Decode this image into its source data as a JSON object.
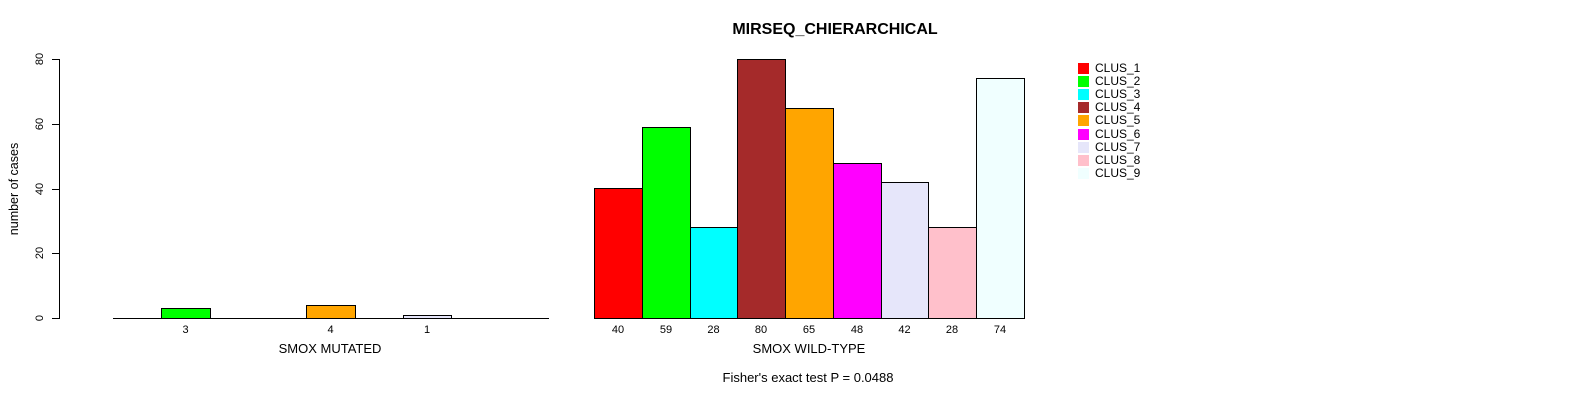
{
  "figure": {
    "title": "MIRSEQ_CHIERARCHICAL",
    "annotation": "Fisher's exact test P = 0.0488"
  },
  "chart_data": {
    "type": "bar",
    "title": "MIRSEQ_CHIERARCHICAL",
    "ylabel": "number of cases",
    "ylim": [
      0,
      80
    ],
    "yticks": [
      0,
      20,
      40,
      60,
      80
    ],
    "grid": false,
    "legend_position": "right",
    "clusters": [
      {
        "label": "CLUS_1",
        "color": "#FF0000"
      },
      {
        "label": "CLUS_2",
        "color": "#00FF00"
      },
      {
        "label": "CLUS_3",
        "color": "#00FFFF"
      },
      {
        "label": "CLUS_4",
        "color": "#A52A2A"
      },
      {
        "label": "CLUS_5",
        "color": "#FFA500"
      },
      {
        "label": "CLUS_6",
        "color": "#FF00FF"
      },
      {
        "label": "CLUS_7",
        "color": "#E6E6FA"
      },
      {
        "label": "CLUS_8",
        "color": "#FFC0CB"
      },
      {
        "label": "CLUS_9",
        "color": "#F0FFFF"
      }
    ],
    "groups": [
      {
        "xlabel": "SMOX MUTATED",
        "values": [
          0,
          3,
          0,
          0,
          4,
          0,
          1,
          0,
          0
        ]
      },
      {
        "xlabel": "SMOX WILD-TYPE",
        "values": [
          40,
          59,
          28,
          80,
          65,
          48,
          42,
          28,
          74
        ]
      }
    ],
    "annotation": "Fisher's exact test P = 0.0488"
  }
}
